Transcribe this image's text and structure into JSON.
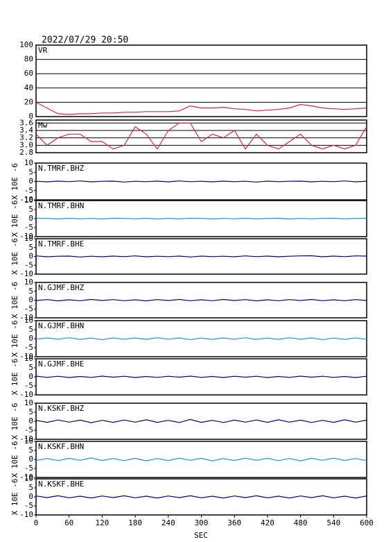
{
  "chart_data": {
    "type": "line",
    "title": "2022/07/29 20:50",
    "xlabel": "SEC",
    "x": [
      0,
      20,
      40,
      60,
      80,
      100,
      120,
      140,
      160,
      180,
      200,
      220,
      240,
      260,
      280,
      300,
      320,
      340,
      360,
      380,
      400,
      420,
      440,
      460,
      480,
      500,
      520,
      540,
      560,
      580,
      600
    ],
    "xlim": [
      0,
      600
    ],
    "xticks": [
      0,
      60,
      120,
      180,
      240,
      300,
      360,
      420,
      480,
      540,
      600
    ],
    "panels": [
      {
        "ylim": [
          0,
          100
        ],
        "yticks": [
          0,
          20,
          40,
          60,
          80,
          100
        ],
        "grid": true,
        "series": [
          {
            "name": "VR",
            "color": "#e0204a",
            "values": [
              20,
              12,
              4,
              3,
              4,
              4,
              5,
              5,
              6,
              6,
              7,
              7,
              7,
              8,
              15,
              12,
              12,
              13,
              11,
              10,
              8,
              9,
              10,
              12,
              17,
              15,
              12,
              11,
              10,
              11,
              12
            ]
          }
        ]
      },
      {
        "ylim": [
          2.8,
          3.68
        ],
        "yticks": [
          2.8,
          {
            "value": 3,
            "label": "3.0"
          },
          3.2,
          3.4,
          3.6
        ],
        "grid": true,
        "series": [
          {
            "name": "Mw",
            "color": "#e0204a",
            "values": [
              3.3,
              3.0,
              3.2,
              3.3,
              3.3,
              3.1,
              3.1,
              2.9,
              3.0,
              3.5,
              3.3,
              2.9,
              3.4,
              3.6,
              3.6,
              3.1,
              3.3,
              3.2,
              3.4,
              2.9,
              3.3,
              3.0,
              2.9,
              3.1,
              3.3,
              3.0,
              2.9,
              3.0,
              2.9,
              3.0,
              3.5
            ]
          }
        ]
      },
      {
        "ylim": [
          -10,
          10
        ],
        "yticks": [
          -10,
          -5,
          0,
          5,
          10
        ],
        "ylabel": "X 10E -6",
        "series": [
          {
            "name": "N.TMRF.BHZ",
            "color": "#00008b",
            "values": [
              0.1,
              -0.2,
              0.2,
              -0.1,
              0.3,
              -0.2,
              0.1,
              0.2,
              -0.3,
              0.1,
              -0.1,
              0.2,
              -0.2,
              0.3,
              -0.1,
              0.1,
              -0.2,
              0.2,
              -0.1,
              0.1,
              -0.3,
              0.2,
              -0.1,
              0.1,
              0.2,
              -0.2,
              0.1,
              -0.1,
              0.3,
              -0.2,
              0.1
            ]
          }
        ]
      },
      {
        "ylim": [
          -10,
          10
        ],
        "yticks": [
          -10,
          -5,
          0,
          5,
          10
        ],
        "ylabel": "X 10E -6",
        "series": [
          {
            "name": "N.TMRF.BHN",
            "color": "#1e8fe0",
            "values": [
              0.2,
              0.1,
              -0.2,
              0.2,
              -0.1,
              0.1,
              -0.2,
              0.2,
              0.1,
              -0.1,
              0.2,
              -0.2,
              0.1,
              -0.1,
              0.2,
              0.1,
              -0.2,
              0.1,
              -0.1,
              0.2,
              -0.1,
              0.1,
              0.2,
              -0.2,
              0.1,
              -0.1,
              0.1,
              0.2,
              -0.1,
              0.1,
              0.2
            ]
          }
        ]
      },
      {
        "ylim": [
          -10,
          10
        ],
        "yticks": [
          -10,
          -5,
          0,
          5,
          10
        ],
        "ylabel": "X 10E -6",
        "series": [
          {
            "name": "N.TMRF.BHE",
            "color": "#000080",
            "values": [
              0.3,
              -0.2,
              0.1,
              0.2,
              -0.3,
              0.1,
              -0.2,
              0.2,
              -0.1,
              0.3,
              -0.2,
              0.1,
              -0.1,
              0.2,
              -0.3,
              0.2,
              -0.1,
              0.1,
              -0.2,
              0.3,
              -0.1,
              0.2,
              -0.2,
              0.1,
              0.3,
              0.4,
              -0.2,
              0.2,
              -0.1,
              0.3,
              0.2
            ]
          }
        ]
      },
      {
        "ylim": [
          -10,
          10
        ],
        "yticks": [
          -10,
          -5,
          0,
          5,
          10
        ],
        "ylabel": "X 10E -6",
        "series": [
          {
            "name": "N.GJMF.BHZ",
            "color": "#00008b",
            "values": [
              -0.2,
              0.3,
              -0.4,
              0.2,
              -0.3,
              0.4,
              -0.2,
              0.3,
              -0.3,
              0.2,
              -0.4,
              0.3,
              -0.2,
              0.4,
              -0.3,
              0.2,
              -0.3,
              0.4,
              -0.2,
              0.3,
              -0.4,
              0.2,
              -0.3,
              0.3,
              -0.2,
              0.4,
              -0.3,
              0.2,
              -0.3,
              0.3,
              -0.2
            ]
          }
        ]
      },
      {
        "ylim": [
          -10,
          10
        ],
        "yticks": [
          -10,
          -5,
          0,
          5,
          10
        ],
        "ylabel": "X 10E -6",
        "series": [
          {
            "name": "N.GJMF.BHN",
            "color": "#1e8fe0",
            "values": [
              -0.3,
              0.4,
              -0.3,
              0.5,
              -0.4,
              0.3,
              -0.5,
              0.4,
              -0.3,
              0.4,
              -0.4,
              0.5,
              -0.3,
              0.4,
              -0.5,
              0.3,
              -0.4,
              0.4,
              -0.3,
              0.5,
              -0.4,
              0.3,
              -0.4,
              0.5,
              -0.3,
              0.4,
              -0.5,
              0.3,
              -0.4,
              0.4,
              -0.3
            ]
          }
        ]
      },
      {
        "ylim": [
          -10,
          10
        ],
        "yticks": [
          -10,
          -5,
          0,
          5,
          10
        ],
        "ylabel": "X 10E -6",
        "series": [
          {
            "name": "N.GJMF.BHE",
            "color": "#000080",
            "values": [
              0.4,
              -0.3,
              0.3,
              -0.4,
              0.2,
              -0.3,
              0.4,
              -0.2,
              0.3,
              -0.4,
              0.2,
              -0.3,
              0.3,
              -0.2,
              0.4,
              -0.3,
              0.2,
              -0.4,
              0.3,
              -0.2,
              0.3,
              -0.4,
              0.2,
              -0.3,
              0.4,
              -0.2,
              0.3,
              -0.3,
              0.2,
              -0.4,
              0.3
            ]
          }
        ]
      },
      {
        "ylim": [
          -10,
          10
        ],
        "yticks": [
          -10,
          -5,
          0,
          5,
          10
        ],
        "ylabel": "X 10E -6",
        "series": [
          {
            "name": "N.KSKF.BHZ",
            "color": "#00008b",
            "values": [
              0.5,
              -0.6,
              0.7,
              -0.5,
              0.6,
              -0.8,
              0.5,
              -0.6,
              0.7,
              -0.5,
              0.8,
              -0.6,
              0.5,
              -0.7,
              1.0,
              -0.6,
              0.5,
              -0.7,
              0.6,
              -0.5,
              0.7,
              -0.6,
              0.8,
              -0.5,
              0.6,
              -0.7,
              0.5,
              -0.6,
              0.8,
              -0.5,
              0.6
            ]
          }
        ]
      },
      {
        "ylim": [
          -10,
          10
        ],
        "yticks": [
          -10,
          -5,
          0,
          5,
          10
        ],
        "ylabel": "X 10E -6",
        "series": [
          {
            "name": "N.KSKF.BHN",
            "color": "#1e8fe0",
            "values": [
              -0.6,
              0.5,
              -0.7,
              0.6,
              -0.5,
              0.8,
              -0.6,
              0.5,
              -0.7,
              0.6,
              -0.8,
              0.5,
              -0.6,
              0.7,
              -0.5,
              0.6,
              -0.8,
              0.5,
              -0.6,
              0.7,
              -0.5,
              0.6,
              -0.7,
              0.5,
              -0.8,
              0.6,
              -0.5,
              0.7,
              -0.6,
              0.5,
              -0.7
            ]
          }
        ]
      },
      {
        "ylim": [
          -10,
          10
        ],
        "yticks": [
          -10,
          -5,
          0,
          5,
          10
        ],
        "ylabel": "X 10E -6",
        "series": [
          {
            "name": "N.KSKF.BHE",
            "color": "#000080",
            "values": [
              0.5,
              -0.4,
              0.6,
              -0.5,
              0.4,
              -0.6,
              0.5,
              -0.4,
              0.6,
              -0.5,
              0.4,
              -0.6,
              0.5,
              -0.4,
              0.6,
              -0.5,
              0.4,
              -0.6,
              0.5,
              -0.4,
              0.6,
              -0.5,
              0.4,
              -0.6,
              0.5,
              -0.4,
              0.6,
              -0.5,
              0.4,
              -0.6,
              0.5
            ]
          }
        ]
      }
    ]
  }
}
